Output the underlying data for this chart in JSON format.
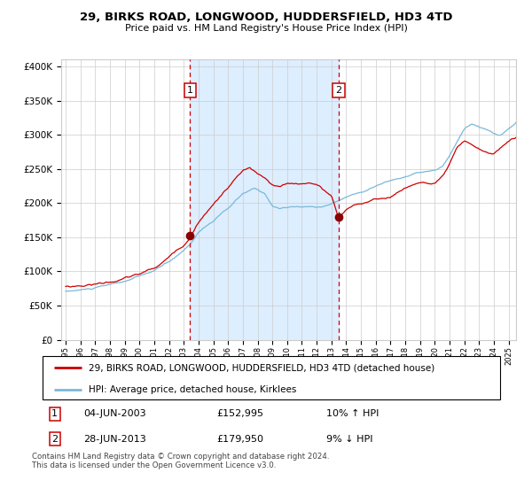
{
  "title": "29, BIRKS ROAD, LONGWOOD, HUDDERSFIELD, HD3 4TD",
  "subtitle": "Price paid vs. HM Land Registry's House Price Index (HPI)",
  "legend_line1": "29, BIRKS ROAD, LONGWOOD, HUDDERSFIELD, HD3 4TD (detached house)",
  "legend_line2": "HPI: Average price, detached house, Kirklees",
  "annotation1_date": "04-JUN-2003",
  "annotation1_price": "£152,995",
  "annotation1_hpi": "10% ↑ HPI",
  "annotation2_date": "28-JUN-2013",
  "annotation2_price": "£179,950",
  "annotation2_hpi": "9% ↓ HPI",
  "footer": "Contains HM Land Registry data © Crown copyright and database right 2024.\nThis data is licensed under the Open Government Licence v3.0.",
  "sale1_year": 2003.42,
  "sale1_price": 152995,
  "sale2_year": 2013.49,
  "sale2_price": 179950,
  "ylim": [
    0,
    410000
  ],
  "xlim_start": 1994.7,
  "xlim_end": 2025.5,
  "hpi_color": "#7ab8d9",
  "price_color": "#cc0000",
  "sale_marker_color": "#8b0000",
  "shade_color": "#ddeeff",
  "background_color": "#ffffff",
  "grid_color": "#cccccc",
  "vline_color": "#cc0000"
}
